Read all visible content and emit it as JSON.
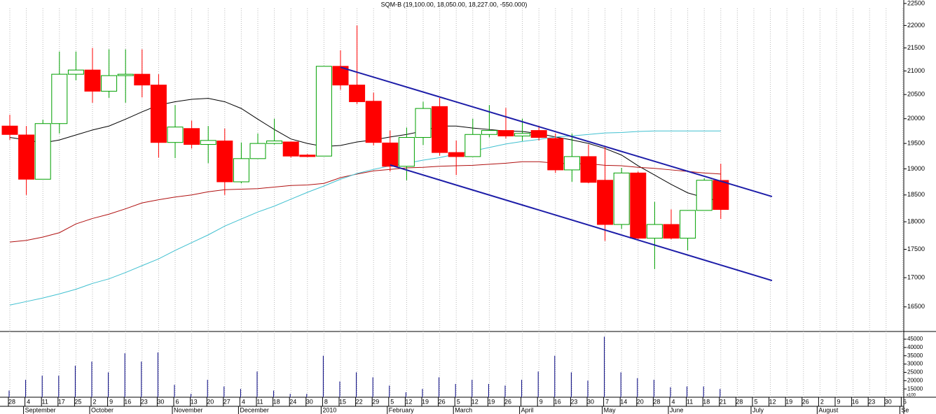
{
  "chart_data": [
    {
      "type": "candlestick",
      "title": "SQM-B (19,100.00, 18,050.00, 18,227.00, -550.000)",
      "log_scale": true,
      "grid": true,
      "categories": [
        "28",
        "4",
        "11",
        "17",
        "25",
        "2",
        "9",
        "16",
        "23",
        "30",
        "6",
        "13",
        "20",
        "27",
        "4",
        "11",
        "18",
        "24",
        "30",
        "8",
        "15",
        "22",
        "29",
        "5",
        "12",
        "19",
        "26",
        "5",
        "12",
        "19",
        "26",
        null,
        "9",
        "16",
        "23",
        "30",
        "7",
        "14",
        "20",
        "28",
        "4",
        "11",
        "18",
        "21",
        "28",
        "5",
        "12",
        "19",
        "26",
        "2",
        "9",
        "16",
        "23",
        "30",
        "6"
      ],
      "months": [
        {
          "label": "September",
          "index": 1
        },
        {
          "label": "October",
          "index": 5
        },
        {
          "label": "November",
          "index": 10
        },
        {
          "label": "December",
          "index": 14
        },
        {
          "label": "2010",
          "index": 19
        },
        {
          "label": "February",
          "index": 23
        },
        {
          "label": "March",
          "index": 27
        },
        {
          "label": "April",
          "index": 31
        },
        {
          "label": "May",
          "index": 36
        },
        {
          "label": "June",
          "index": 40
        },
        {
          "label": "July",
          "index": 45
        },
        {
          "label": "August",
          "index": 49
        },
        {
          "label": "Se",
          "index": 54
        }
      ],
      "up_color": "#00a000",
      "down_color": "#ff0000",
      "open": [
        19850,
        19670,
        18800,
        19900,
        20930,
        21020,
        20570,
        20900,
        20930,
        20700,
        19520,
        19800,
        19480,
        19550,
        18750,
        19200,
        19500,
        19530,
        19270,
        19250,
        21100,
        20700,
        20360,
        19510,
        19050,
        19620,
        20250,
        19320,
        19240,
        19680,
        19760,
        19650,
        19760,
        19600,
        18980,
        19240,
        18780,
        17950,
        18920,
        17700,
        17950,
        17700,
        18210,
        18777,
        null,
        null,
        null,
        null,
        null,
        null,
        null,
        null,
        null,
        null,
        null
      ],
      "high": [
        20080,
        19850,
        19980,
        21420,
        21420,
        21500,
        21470,
        21470,
        21470,
        20930,
        20280,
        19960,
        19850,
        19800,
        19520,
        19700,
        20000,
        19530,
        19290,
        21100,
        21450,
        22000,
        20540,
        19760,
        19820,
        20350,
        20430,
        19560,
        20000,
        20280,
        20220,
        20000,
        19860,
        19700,
        19700,
        19480,
        19440,
        19020,
        18950,
        18370,
        18230,
        18210,
        18820,
        19100,
        null,
        null,
        null,
        null,
        null,
        null,
        null,
        null,
        null,
        null,
        null
      ],
      "low": [
        19570,
        18500,
        18800,
        19700,
        20800,
        20330,
        20430,
        20330,
        20440,
        19220,
        19210,
        19400,
        19110,
        18500,
        18720,
        19200,
        19480,
        19220,
        19230,
        19250,
        20600,
        20300,
        19460,
        18950,
        18780,
        19470,
        19260,
        18880,
        19240,
        19620,
        19600,
        19550,
        19560,
        18920,
        18750,
        18720,
        17650,
        17870,
        17670,
        17150,
        17680,
        17480,
        18210,
        18050,
        null,
        null,
        null,
        null,
        null,
        null,
        null,
        null,
        null,
        null,
        null
      ],
      "close": [
        19680,
        18800,
        19900,
        20930,
        21020,
        20570,
        20900,
        20930,
        20700,
        19520,
        19830,
        19480,
        19560,
        18750,
        19200,
        19500,
        19550,
        19250,
        19240,
        21100,
        20700,
        20350,
        19520,
        19050,
        19620,
        20210,
        19320,
        19240,
        19680,
        19760,
        19650,
        19700,
        19620,
        18980,
        19240,
        18740,
        17950,
        18920,
        17700,
        17950,
        17700,
        18210,
        18780,
        18227,
        null,
        null,
        null,
        null,
        null,
        null,
        null,
        null,
        null,
        null,
        null
      ],
      "series": [
        {
          "type": "line",
          "color": "#000000",
          "values": [
            19620,
            19570,
            19510,
            19570,
            19670,
            19770,
            19850,
            19990,
            20140,
            20280,
            20350,
            20400,
            20420,
            20350,
            20210,
            19990,
            19780,
            19590,
            19500,
            19440,
            19460,
            19530,
            19570,
            19630,
            19680,
            19750,
            19850,
            19850,
            19810,
            19780,
            19750,
            19740,
            19700,
            19630,
            19570,
            19500,
            19400,
            19270,
            19060,
            18880,
            18700,
            18540,
            18450,
            18380,
            null,
            null,
            null,
            null,
            null,
            null,
            null,
            null,
            null,
            null,
            null
          ]
        },
        {
          "type": "line",
          "color": "#b01010",
          "values": [
            17630,
            17660,
            17720,
            17800,
            17960,
            18060,
            18140,
            18240,
            18350,
            18410,
            18460,
            18500,
            18560,
            18600,
            18610,
            18620,
            18650,
            18680,
            18690,
            18720,
            18830,
            18900,
            18960,
            18990,
            19020,
            19030,
            19050,
            19060,
            19070,
            19090,
            19110,
            19140,
            19140,
            19110,
            19100,
            19100,
            19070,
            19060,
            19030,
            19010,
            18980,
            18950,
            18920,
            18900,
            null,
            null,
            null,
            null,
            null,
            null,
            null,
            null,
            null,
            null,
            null
          ]
        },
        {
          "type": "line",
          "color": "#40c0d0",
          "values": [
            16530,
            16590,
            16650,
            16720,
            16800,
            16900,
            16980,
            17090,
            17210,
            17330,
            17480,
            17620,
            17760,
            17920,
            18050,
            18180,
            18290,
            18420,
            18550,
            18670,
            18800,
            18910,
            18990,
            19060,
            19110,
            19170,
            19220,
            19290,
            19350,
            19420,
            19490,
            19540,
            19580,
            19630,
            19650,
            19680,
            19710,
            19720,
            19740,
            19750,
            19750,
            19750,
            19750,
            19750,
            null,
            null,
            null,
            null,
            null,
            null,
            null,
            null,
            null,
            null,
            null
          ]
        }
      ],
      "trendlines": [
        {
          "x": [
            20,
            46.1
          ],
          "y": [
            21080,
            18470
          ],
          "color": "#1c1ca8"
        },
        {
          "x": [
            23,
            46.1
          ],
          "y": [
            19075,
            16950
          ],
          "color": "#1c1ca8"
        }
      ],
      "ylim": [
        16090,
        22580
      ],
      "yticks": [
        16500,
        17000,
        17500,
        18000,
        18500,
        19000,
        19500,
        20000,
        20500,
        21000,
        21500,
        22000,
        22500
      ]
    },
    {
      "type": "bar",
      "unit_label": "x100",
      "color": "#000080",
      "values": [
        14000,
        20500,
        23000,
        23000,
        29000,
        31500,
        25000,
        36500,
        31500,
        37000,
        17500,
        12000,
        20500,
        16500,
        15000,
        25500,
        14000,
        12000,
        12000,
        35000,
        19500,
        25000,
        22000,
        17000,
        13000,
        15000,
        22000,
        18000,
        20500,
        18000,
        17000,
        20500,
        25500,
        35000,
        25000,
        20000,
        46500,
        25000,
        21500,
        20500,
        16000,
        16500,
        16500,
        15000,
        null,
        null,
        null,
        null,
        null,
        null,
        null,
        null,
        null,
        null,
        null
      ],
      "ylim": [
        10000,
        48800
      ],
      "yticks": [
        15000,
        20000,
        25000,
        30000,
        35000,
        40000,
        45000
      ]
    }
  ]
}
